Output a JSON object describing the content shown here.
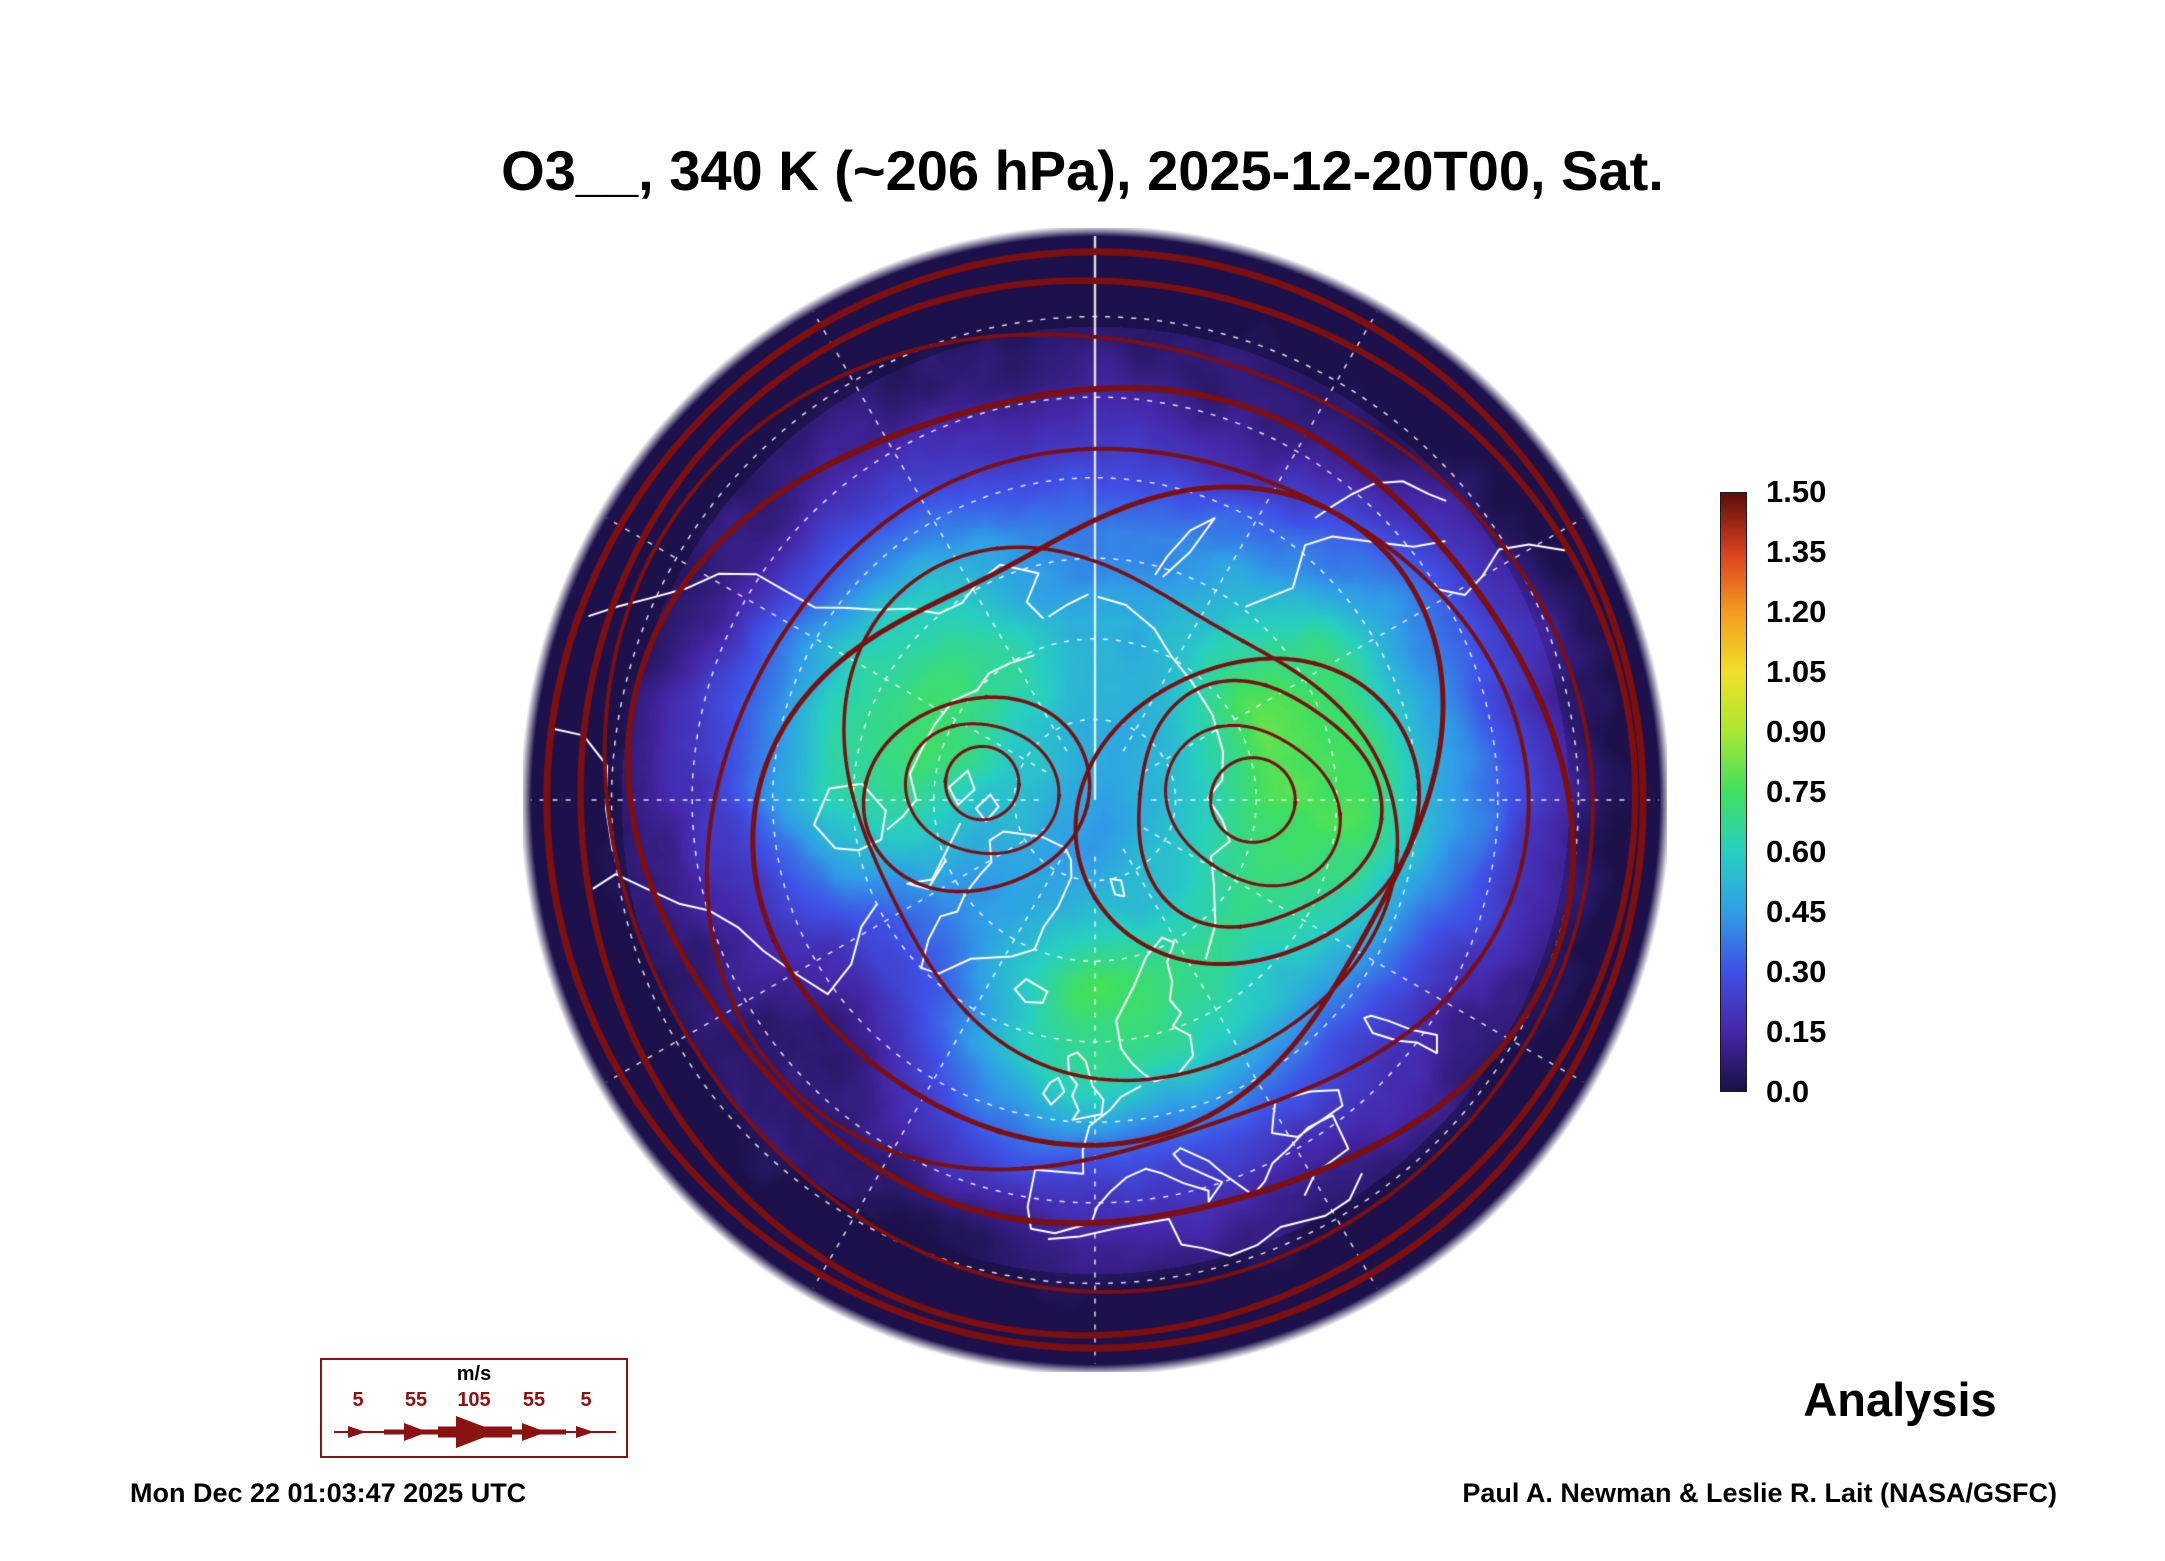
{
  "title": "O3__, 340 K (~206 hPa), 2025-12-20T00, Sat.",
  "analysis_label": "Analysis",
  "footer": {
    "timestamp": "Mon Dec 22 01:03:47 2025 UTC",
    "credit": "Paul A. Newman & Leslie R. Lait (NASA/GSFC)"
  },
  "colorbar": {
    "ticks": [
      "1.50",
      "1.35",
      "1.20",
      "1.05",
      "0.90",
      "0.75",
      "0.60",
      "0.45",
      "0.30",
      "0.15",
      "0.0"
    ],
    "stops": [
      {
        "v": 0.0,
        "c": "#1a1045"
      },
      {
        "v": 0.15,
        "c": "#4527a8"
      },
      {
        "v": 0.3,
        "c": "#3f51e6"
      },
      {
        "v": 0.45,
        "c": "#2f9fe6"
      },
      {
        "v": 0.6,
        "c": "#27cfc0"
      },
      {
        "v": 0.75,
        "c": "#3fdf5f"
      },
      {
        "v": 0.9,
        "c": "#a8e832"
      },
      {
        "v": 1.05,
        "c": "#f0e027"
      },
      {
        "v": 1.2,
        "c": "#f59b1e"
      },
      {
        "v": 1.35,
        "c": "#d9411e"
      },
      {
        "v": 1.5,
        "c": "#5c0d0d"
      }
    ]
  },
  "wind_legend": {
    "unit": "m/s",
    "values": [
      "5",
      "55",
      "105",
      "55",
      "5"
    ]
  },
  "colors": {
    "streamline": "#7c0f10",
    "coastline": "#ffffff",
    "wind_legend_accent": "#8b1212"
  },
  "chart_data": {
    "type": "heatmap",
    "title": "O3__, 340 K (~206 hPa), 2025-12-20T00, Sat.",
    "species": "O3",
    "level": "340 K (~206 hPa)",
    "valid_time": "2025-12-20T00",
    "day": "Sat.",
    "projection": "north polar view of globe",
    "colorbar": {
      "min": 0.0,
      "max": 1.5,
      "tick_step": 0.15,
      "ticks": [
        0.0,
        0.15,
        0.3,
        0.45,
        0.6,
        0.75,
        0.9,
        1.05,
        1.2,
        1.35,
        1.5
      ]
    },
    "overlays": [
      "wind streamlines with arrowheads (dark red)",
      "coastlines (white)",
      "latitude-longitude graticule (white dashed)"
    ],
    "wind_scale_ms": [
      5,
      55,
      105,
      55,
      5
    ],
    "run_type": "Analysis",
    "generated": "Mon Dec 22 01:03:47 2025 UTC",
    "credit": "Paul A. Newman & Leslie R. Lait (NASA/GSFC)"
  }
}
